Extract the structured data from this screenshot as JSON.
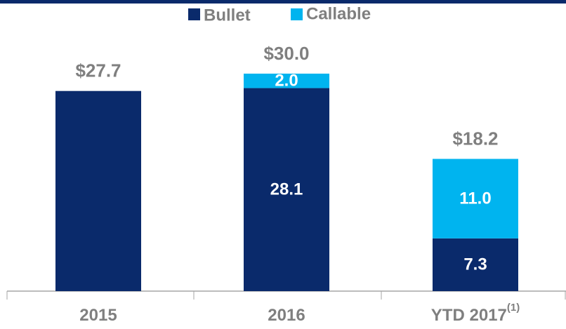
{
  "chart_data": {
    "type": "stacked_bar",
    "categories": [
      "2015",
      "2016",
      "YTD 2017"
    ],
    "category_notes": [
      null,
      null,
      "(1)"
    ],
    "series": [
      {
        "name": "Bullet",
        "color": "#0a2a6b",
        "values": [
          27.7,
          28.1,
          7.3
        ],
        "value_labels": [
          null,
          "28.1",
          "7.3"
        ]
      },
      {
        "name": "Callable",
        "color": "#00b4ef",
        "values": [
          null,
          2.0,
          11.0
        ],
        "value_labels": [
          null,
          "2.0",
          "11.0"
        ]
      }
    ],
    "total_labels": [
      "$27.7",
      "$30.0",
      "$18.2"
    ],
    "ylim": [
      0,
      40
    ],
    "legend": "top"
  }
}
